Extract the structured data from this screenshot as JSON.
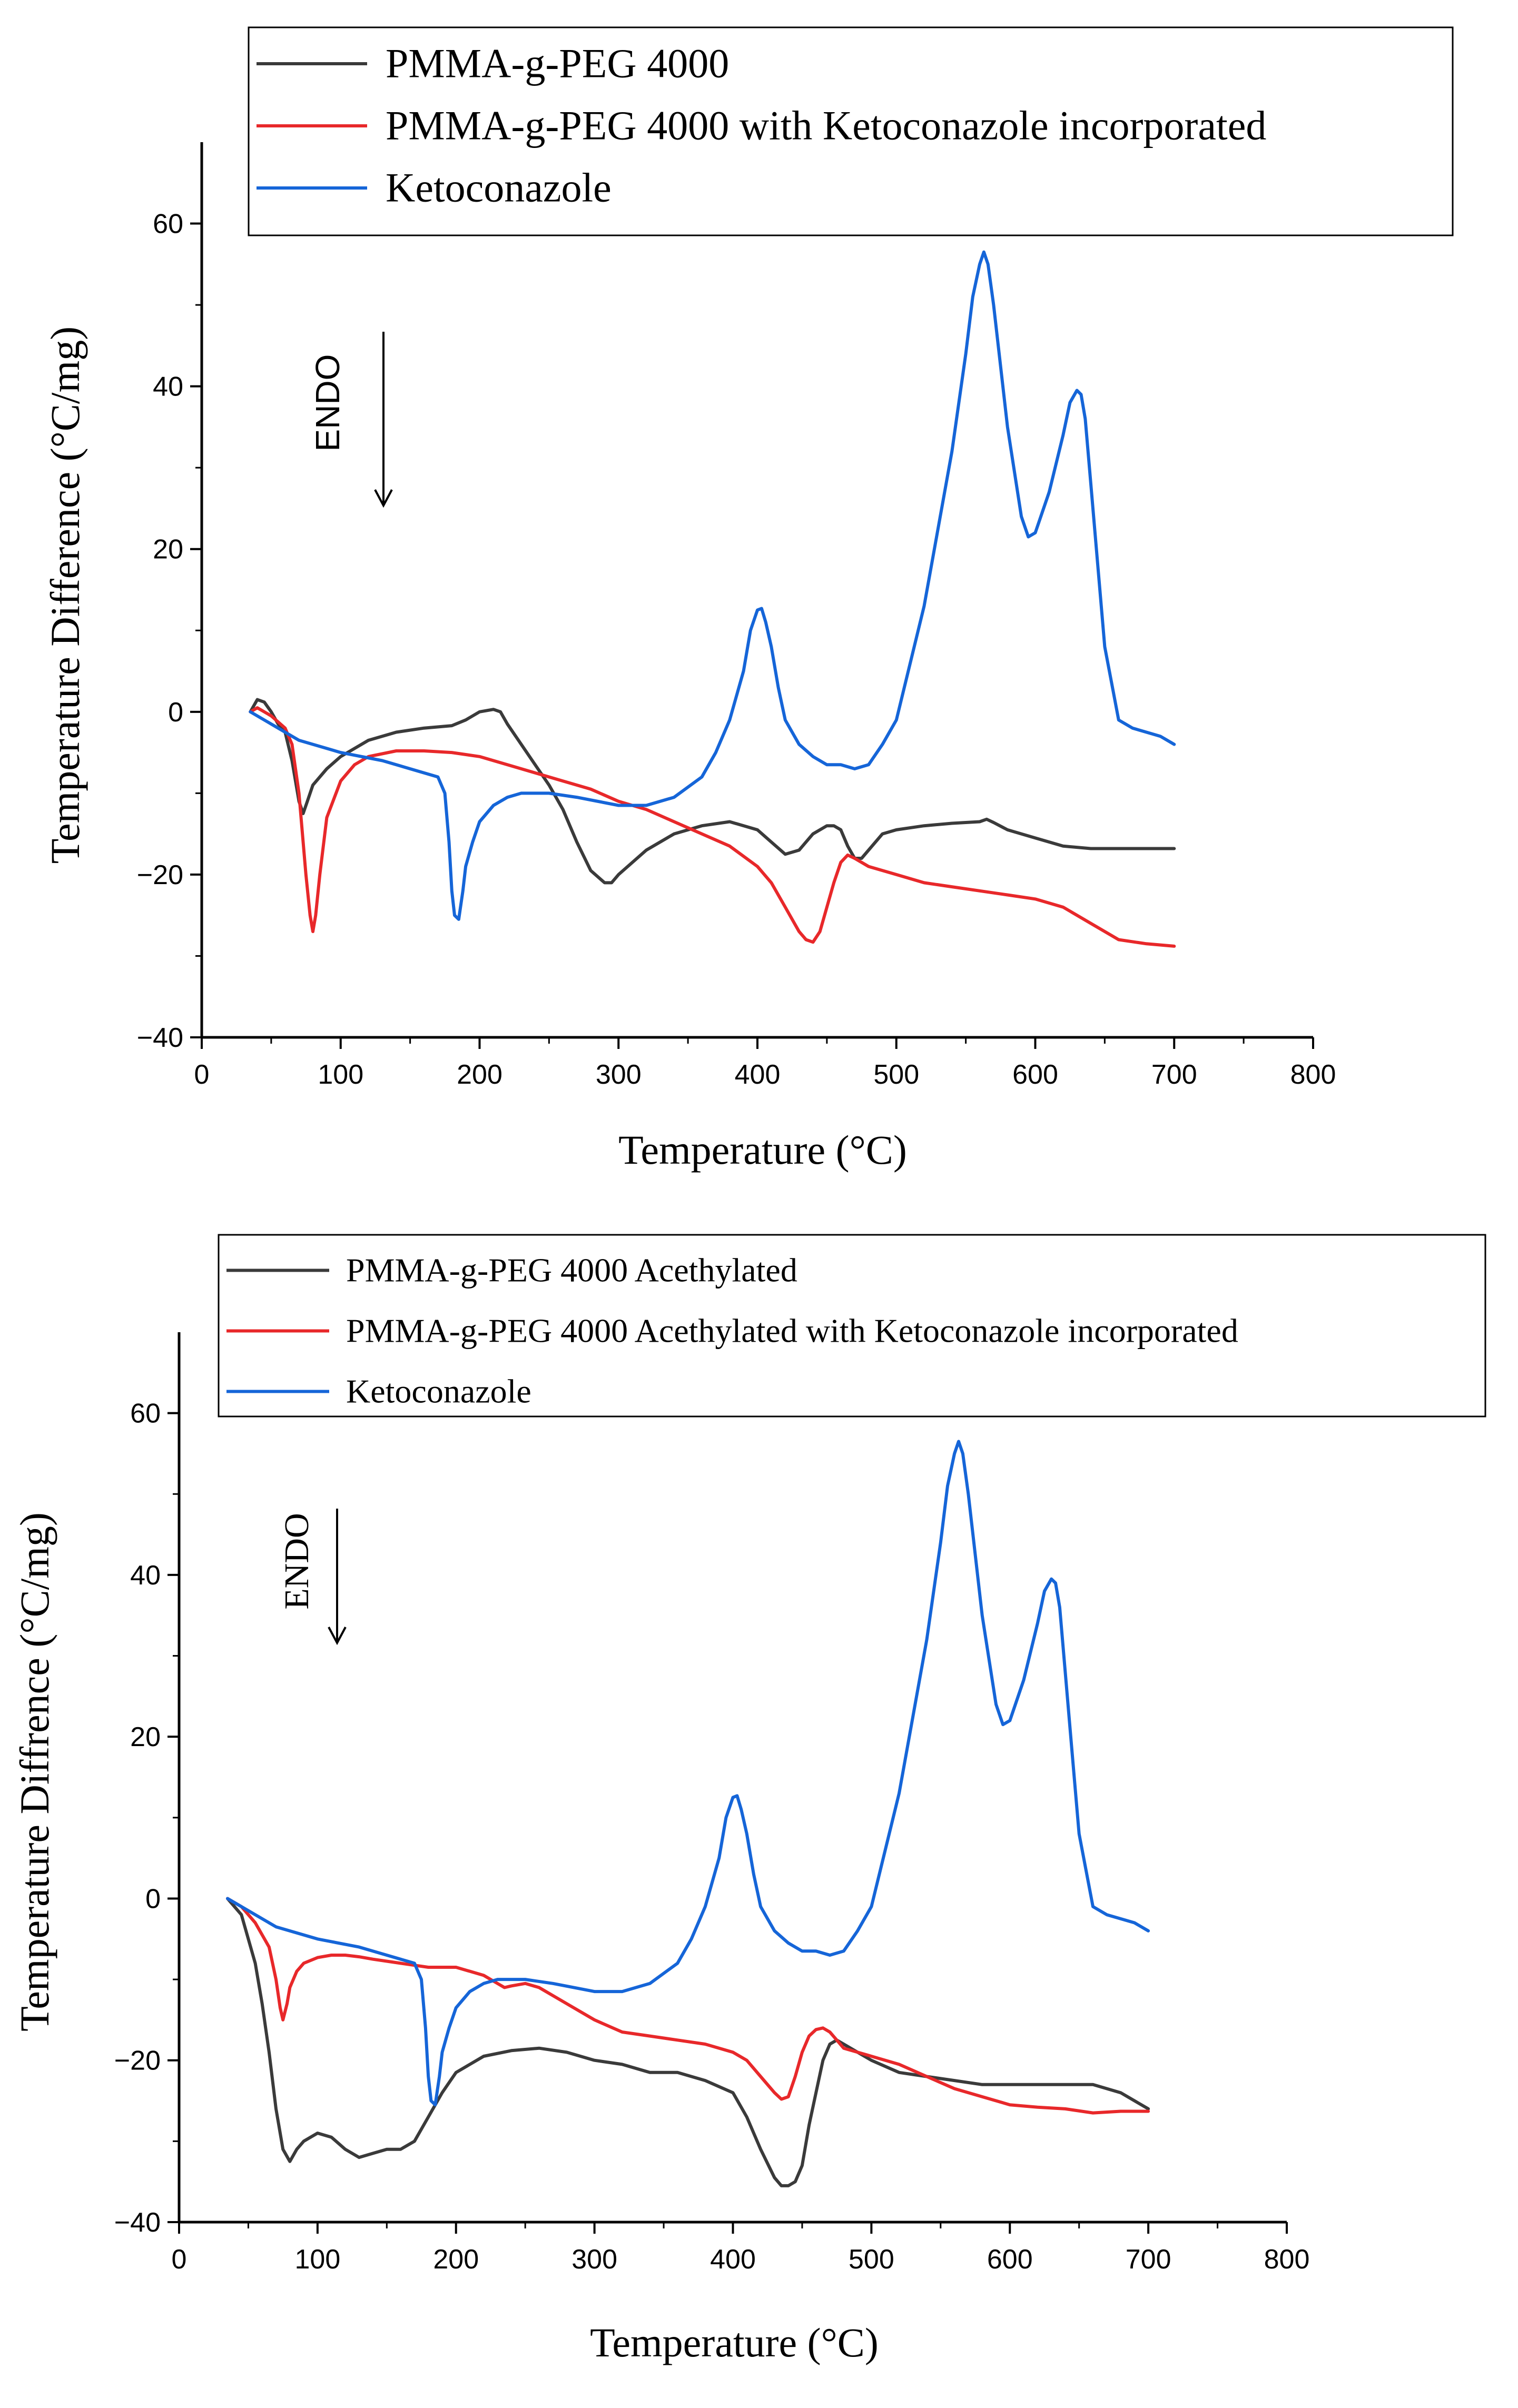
{
  "chart_data": [
    {
      "type": "line",
      "xlabel": "Temperature (°C)",
      "ylabel": "Temperature Difference (°C/mg)",
      "xlim": [
        0,
        800
      ],
      "ylim": [
        -40,
        70
      ],
      "xticks": [
        0,
        100,
        200,
        300,
        400,
        500,
        600,
        700,
        800
      ],
      "yticks": [
        -40,
        -20,
        0,
        20,
        40,
        60
      ],
      "grid": false,
      "legend_position": "top",
      "annotation": "ENDO",
      "series": [
        {
          "name": "PMMA-g-PEG 4000",
          "color": "#3a3a3a",
          "x": [
            35,
            40,
            45,
            50,
            55,
            60,
            65,
            70,
            73,
            76,
            80,
            90,
            100,
            120,
            140,
            160,
            180,
            190,
            200,
            210,
            215,
            220,
            230,
            240,
            250,
            260,
            270,
            280,
            290,
            295,
            300,
            320,
            340,
            360,
            380,
            400,
            410,
            420,
            430,
            440,
            450,
            455,
            460,
            465,
            470,
            475,
            480,
            490,
            500,
            520,
            540,
            560,
            565,
            570,
            580,
            600,
            620,
            640,
            660,
            680,
            700
          ],
          "y": [
            0,
            1.5,
            1.2,
            0,
            -1.5,
            -2.5,
            -6,
            -11,
            -12.5,
            -11,
            -9,
            -7,
            -5.5,
            -3.5,
            -2.5,
            -2,
            -1.7,
            -1,
            0,
            0.3,
            0,
            -1.5,
            -4,
            -6.5,
            -9,
            -12,
            -16,
            -19.5,
            -21,
            -21,
            -20,
            -17,
            -15,
            -14,
            -13.5,
            -14.5,
            -16,
            -17.5,
            -17,
            -15,
            -14,
            -14,
            -14.5,
            -16.5,
            -18,
            -18,
            -17,
            -15,
            -14.5,
            -14,
            -13.7,
            -13.5,
            -13.2,
            -13.6,
            -14.5,
            -15.5,
            -16.5,
            -16.8,
            -16.8,
            -16.8,
            -16.8
          ]
        },
        {
          "name": "PMMA-g-PEG 4000 with Ketoconazole incorporated",
          "color": "#e8282a",
          "x": [
            35,
            40,
            50,
            60,
            65,
            70,
            75,
            78,
            80,
            82,
            85,
            90,
            100,
            110,
            120,
            140,
            160,
            180,
            200,
            220,
            240,
            260,
            280,
            300,
            320,
            340,
            360,
            380,
            400,
            410,
            420,
            430,
            435,
            440,
            445,
            450,
            455,
            460,
            465,
            470,
            480,
            500,
            520,
            540,
            560,
            580,
            600,
            620,
            640,
            660,
            680,
            700
          ],
          "y": [
            0,
            0.5,
            -0.5,
            -2,
            -4,
            -10,
            -20,
            -25,
            -27,
            -25,
            -20,
            -13,
            -8.5,
            -6.5,
            -5.5,
            -4.8,
            -4.8,
            -5,
            -5.5,
            -6.5,
            -7.5,
            -8.5,
            -9.5,
            -11,
            -12,
            -13.5,
            -15,
            -16.5,
            -19,
            -21,
            -24,
            -27,
            -28,
            -28.3,
            -27,
            -24,
            -21,
            -18.5,
            -17.6,
            -18,
            -19,
            -20,
            -21,
            -21.5,
            -22,
            -22.5,
            -23,
            -24,
            -26,
            -28,
            -28.5,
            -28.8
          ]
        },
        {
          "name": "Ketoconazole",
          "color": "#1565d8",
          "x": [
            35,
            50,
            70,
            100,
            130,
            150,
            170,
            175,
            178,
            180,
            182,
            185,
            188,
            190,
            195,
            200,
            210,
            220,
            230,
            250,
            270,
            300,
            320,
            340,
            360,
            370,
            380,
            390,
            395,
            400,
            403,
            406,
            410,
            415,
            420,
            430,
            440,
            450,
            460,
            470,
            480,
            490,
            500,
            520,
            540,
            550,
            555,
            560,
            563,
            566,
            570,
            580,
            590,
            595,
            600,
            610,
            620,
            625,
            630,
            633,
            636,
            640,
            645,
            650,
            660,
            670,
            680,
            690,
            700
          ],
          "y": [
            0,
            -1.5,
            -3.5,
            -5,
            -6,
            -7,
            -8,
            -10,
            -16,
            -22,
            -25,
            -25.5,
            -22,
            -19,
            -16,
            -13.5,
            -11.5,
            -10.5,
            -10,
            -10,
            -10.5,
            -11.5,
            -11.5,
            -10.5,
            -8,
            -5,
            -1,
            5,
            10,
            12.5,
            12.7,
            11,
            8,
            3,
            -1,
            -4,
            -5.5,
            -6.5,
            -6.5,
            -7,
            -6.5,
            -4,
            -1,
            13,
            32,
            44,
            51,
            55,
            56.5,
            55,
            50,
            35,
            24,
            21.5,
            22,
            27,
            34,
            38,
            39.5,
            39,
            36,
            28,
            18,
            8,
            -1,
            -2,
            -2.5,
            -3,
            -4
          ]
        }
      ]
    },
    {
      "type": "line",
      "xlabel": "Temperature (°C)",
      "ylabel": "Temperature Diffrence (°C/mg)",
      "xlim": [
        0,
        800
      ],
      "ylim": [
        -40,
        70
      ],
      "xticks": [
        0,
        100,
        200,
        300,
        400,
        500,
        600,
        700,
        800
      ],
      "yticks": [
        -40,
        -20,
        0,
        20,
        40,
        60
      ],
      "grid": false,
      "legend_position": "top",
      "annotation": "ENDO",
      "series": [
        {
          "name": "PMMA-g-PEG 4000 Acethylated",
          "color": "#3a3a3a",
          "x": [
            35,
            45,
            55,
            60,
            65,
            70,
            75,
            80,
            85,
            90,
            100,
            110,
            120,
            130,
            140,
            150,
            160,
            170,
            180,
            190,
            200,
            220,
            240,
            260,
            280,
            300,
            320,
            340,
            360,
            380,
            400,
            410,
            420,
            430,
            435,
            440,
            445,
            450,
            455,
            460,
            465,
            470,
            475,
            480,
            500,
            520,
            540,
            560,
            580,
            600,
            620,
            640,
            660,
            680,
            700
          ],
          "y": [
            0,
            -2,
            -8,
            -13,
            -19,
            -26,
            -31,
            -32.5,
            -31,
            -30,
            -29,
            -29.5,
            -31,
            -32,
            -31.5,
            -31,
            -31,
            -30,
            -27,
            -24,
            -21.5,
            -19.5,
            -18.8,
            -18.5,
            -19,
            -20,
            -20.5,
            -21.5,
            -21.5,
            -22.5,
            -24,
            -27,
            -31,
            -34.5,
            -35.5,
            -35.5,
            -35,
            -33,
            -28,
            -24,
            -20,
            -18,
            -17.5,
            -18,
            -20,
            -21.5,
            -22,
            -22.5,
            -23,
            -23,
            -23,
            -23,
            -23,
            -24,
            -26
          ]
        },
        {
          "name": "PMMA-g-PEG 4000 Acethylated with Ketoconazole incorporated",
          "color": "#e8282a",
          "x": [
            35,
            45,
            55,
            65,
            70,
            73,
            75,
            78,
            80,
            85,
            90,
            100,
            110,
            120,
            130,
            140,
            160,
            180,
            200,
            220,
            230,
            235,
            240,
            250,
            260,
            280,
            300,
            320,
            340,
            360,
            380,
            400,
            410,
            420,
            430,
            435,
            440,
            445,
            450,
            455,
            460,
            465,
            470,
            475,
            480,
            500,
            520,
            540,
            560,
            580,
            600,
            620,
            640,
            660,
            680,
            700
          ],
          "y": [
            0,
            -1,
            -3,
            -6,
            -10,
            -13.5,
            -15,
            -13,
            -11,
            -9,
            -8,
            -7.3,
            -7,
            -7,
            -7.2,
            -7.5,
            -8,
            -8.5,
            -8.5,
            -9.5,
            -10.5,
            -11,
            -10.8,
            -10.5,
            -11,
            -13,
            -15,
            -16.5,
            -17,
            -17.5,
            -18,
            -19,
            -20,
            -22,
            -24,
            -24.8,
            -24.5,
            -22,
            -19,
            -17,
            -16.2,
            -16,
            -16.5,
            -17.5,
            -18.5,
            -19.5,
            -20.5,
            -22,
            -23.5,
            -24.5,
            -25.5,
            -25.8,
            -26,
            -26.5,
            -26.3,
            -26.3
          ]
        },
        {
          "name": "Ketoconazole",
          "color": "#1565d8",
          "x": [
            35,
            50,
            70,
            100,
            130,
            150,
            170,
            175,
            178,
            180,
            182,
            185,
            188,
            190,
            195,
            200,
            210,
            220,
            230,
            250,
            270,
            300,
            320,
            340,
            360,
            370,
            380,
            390,
            395,
            400,
            403,
            406,
            410,
            415,
            420,
            430,
            440,
            450,
            460,
            470,
            480,
            490,
            500,
            520,
            540,
            550,
            555,
            560,
            563,
            566,
            570,
            580,
            590,
            595,
            600,
            610,
            620,
            625,
            630,
            633,
            636,
            640,
            645,
            650,
            660,
            670,
            680,
            690,
            700
          ],
          "y": [
            0,
            -1.5,
            -3.5,
            -5,
            -6,
            -7,
            -8,
            -10,
            -16,
            -22,
            -25,
            -25.5,
            -22,
            -19,
            -16,
            -13.5,
            -11.5,
            -10.5,
            -10,
            -10,
            -10.5,
            -11.5,
            -11.5,
            -10.5,
            -8,
            -5,
            -1,
            5,
            10,
            12.5,
            12.7,
            11,
            8,
            3,
            -1,
            -4,
            -5.5,
            -6.5,
            -6.5,
            -7,
            -6.5,
            -4,
            -1,
            13,
            32,
            44,
            51,
            55,
            56.5,
            55,
            50,
            35,
            24,
            21.5,
            22,
            27,
            34,
            38,
            39.5,
            39,
            36,
            28,
            18,
            8,
            -1,
            -2,
            -2.5,
            -3,
            -4
          ]
        }
      ]
    }
  ]
}
